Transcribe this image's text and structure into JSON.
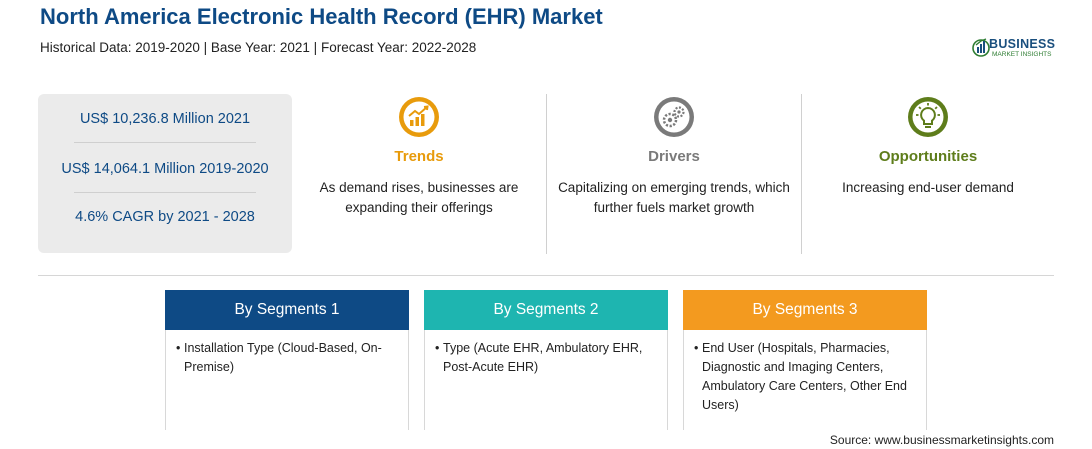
{
  "header": {
    "title": "North America Electronic Health Record (EHR) Market",
    "subtitle": "Historical Data: 2019-2020 | Base Year: 2021 | Forecast Year: 2022-2028"
  },
  "logo": {
    "line1": "BUSINESS",
    "line2": "MARKET INSIGHTS"
  },
  "stats": [
    "US$ 10,236.8 Million 2021",
    "US$ 14,064.1 Million 2019-2020",
    "4.6% CAGR by 2021 - 2028"
  ],
  "columns": [
    {
      "icon": "trend-chart-icon",
      "title": "Trends",
      "text": "As demand rises, businesses are expanding their offerings",
      "color": "#e89b0c"
    },
    {
      "icon": "gears-icon",
      "title": "Drivers",
      "text": "Capitalizing on emerging trends, which further fuels market growth",
      "color": "#7a7a7a"
    },
    {
      "icon": "lightbulb-icon",
      "title": "Opportunities",
      "text": "Increasing end-user demand",
      "color": "#5e7d1b"
    }
  ],
  "segments": [
    {
      "title": "By Segments 1",
      "item": "Installation Type (Cloud-Based, On-Premise)",
      "color": "#0e4a85"
    },
    {
      "title": "By Segments 2",
      "item": "Type (Acute EHR, Ambulatory EHR, Post-Acute EHR)",
      "color": "#1eb5b0"
    },
    {
      "title": "By Segments 3",
      "item": "End User (Hospitals, Pharmacies, Diagnostic and Imaging Centers, Ambulatory Care Centers, Other End Users)",
      "color": "#f39a1f"
    }
  ],
  "source": "Source: www.businessmarketinsights.com"
}
